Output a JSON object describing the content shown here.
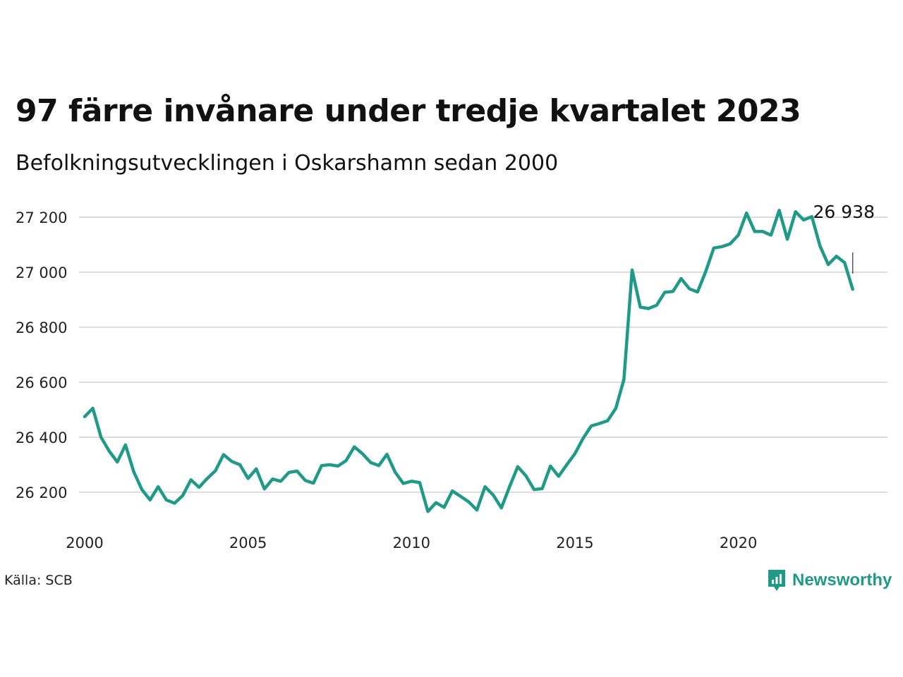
{
  "header": {
    "title": "97 färre invånare under tredje kvartalet 2023",
    "subtitle": "Befolkningsutvecklingen i Oskarshamn sedan 2000"
  },
  "footer": {
    "source": "Källa: SCB",
    "brand": "Newsworthy"
  },
  "colors": {
    "line": "#1f9a88",
    "grid": "#dddddd",
    "brand": "#1f9a88"
  },
  "chart_data": {
    "type": "line",
    "title": "97 färre invånare under tredje kvartalet 2023",
    "subtitle": "Befolkningsutvecklingen i Oskarshamn sedan 2000",
    "xlim": [
      2000,
      2024.5
    ],
    "ylim": [
      26090,
      27300
    ],
    "xticks": [
      2000,
      2005,
      2010,
      2015,
      2020
    ],
    "xtick_labels": [
      "2000",
      "2005",
      "2010",
      "2015",
      "2020"
    ],
    "yticks": [
      26200,
      26400,
      26600,
      26800,
      27000,
      27200
    ],
    "ytick_labels": [
      "26 200",
      "26 400",
      "26 600",
      "26 800",
      "27 000",
      "27 200"
    ],
    "grid": "horizontal",
    "last_value_label": "26 938",
    "series": [
      {
        "x": [
          2000.0,
          2000.25,
          2000.5,
          2000.75,
          2001.0,
          2001.25,
          2001.5,
          2001.75,
          2002.0,
          2002.25,
          2002.5,
          2002.75,
          2003.0,
          2003.25,
          2003.5,
          2003.75,
          2004.0,
          2004.25,
          2004.5,
          2004.75,
          2005.0,
          2005.25,
          2005.5,
          2005.75,
          2006.0,
          2006.25,
          2006.5,
          2006.75,
          2007.0,
          2007.25,
          2007.5,
          2007.75,
          2008.0,
          2008.25,
          2008.5,
          2008.75,
          2009.0,
          2009.25,
          2009.5,
          2009.75,
          2010.0,
          2010.25,
          2010.5,
          2010.75,
          2011.0,
          2011.25,
          2011.5,
          2011.75,
          2012.0,
          2012.25,
          2012.5,
          2012.75,
          2013.0,
          2013.25,
          2013.5,
          2013.75,
          2014.0,
          2014.25,
          2014.5,
          2014.75,
          2015.0,
          2015.25,
          2015.5,
          2015.75,
          2016.0,
          2016.25,
          2016.5,
          2016.75,
          2017.0,
          2017.25,
          2017.5,
          2017.75,
          2018.0,
          2018.25,
          2018.5,
          2018.75,
          2019.0,
          2019.25,
          2019.5,
          2019.75,
          2020.0,
          2020.25,
          2020.5,
          2020.75,
          2021.0,
          2021.25,
          2021.5,
          2021.75,
          2022.0,
          2022.25,
          2022.5,
          2022.75,
          2023.0,
          2023.25,
          2023.5
        ],
        "values": [
          26475,
          26505,
          26400,
          26350,
          26310,
          26372,
          26275,
          26210,
          26172,
          26220,
          26172,
          26160,
          26188,
          26245,
          26218,
          26250,
          26278,
          26337,
          26312,
          26300,
          26250,
          26285,
          26212,
          26248,
          26240,
          26272,
          26277,
          26243,
          26233,
          26297,
          26300,
          26295,
          26315,
          26365,
          26340,
          26308,
          26297,
          26338,
          26273,
          26232,
          26240,
          26235,
          26130,
          26162,
          26145,
          26205,
          26185,
          26165,
          26135,
          26220,
          26190,
          26143,
          26220,
          26293,
          26260,
          26210,
          26213,
          26295,
          26258,
          26300,
          26340,
          26396,
          26441,
          26450,
          26460,
          26505,
          26610,
          27008,
          26873,
          26868,
          26880,
          26927,
          26930,
          26977,
          26940,
          26928,
          27002,
          27088,
          27093,
          27103,
          27135,
          27215,
          27148,
          27148,
          27135,
          27225,
          27120,
          27220,
          27190,
          27202,
          27095,
          27028,
          27058,
          27035,
          26938
        ]
      }
    ]
  }
}
